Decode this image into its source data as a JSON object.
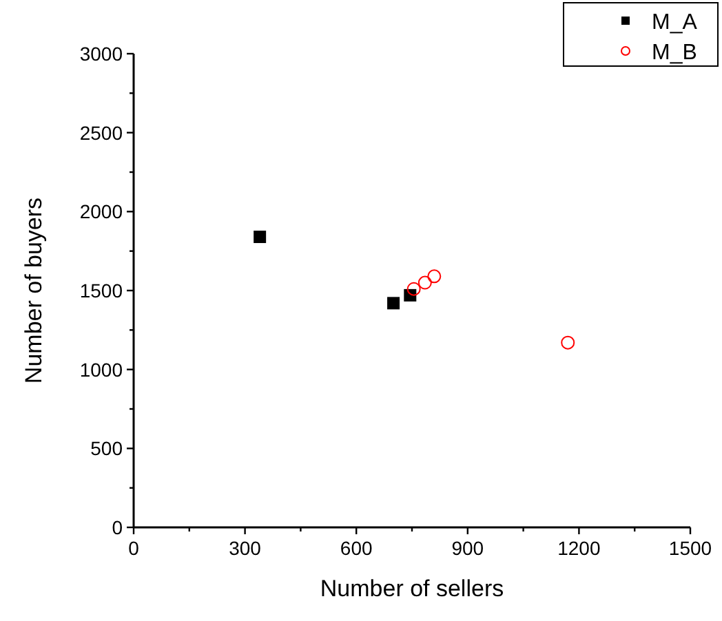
{
  "chart_data": {
    "type": "scatter",
    "xlabel": "Number of sellers",
    "ylabel": "Number of buyers",
    "xlim": [
      0,
      1500
    ],
    "ylim": [
      0,
      3000
    ],
    "xticks": [
      0,
      {
        "value": 150,
        "label": null
      },
      300,
      {
        "value": 450,
        "label": null
      },
      600,
      {
        "value": 750,
        "label": null
      },
      900,
      {
        "value": 1050,
        "label": null
      },
      1200,
      {
        "value": 1350,
        "label": null
      },
      1500
    ],
    "yticks": [
      0,
      {
        "value": 250,
        "label": null
      },
      500,
      {
        "value": 750,
        "label": null
      },
      1000,
      {
        "value": 1250,
        "label": null
      },
      1500,
      {
        "value": 1750,
        "label": null
      },
      2000,
      {
        "value": 2250,
        "label": null
      },
      2500,
      {
        "value": 2750,
        "label": null
      },
      3000
    ],
    "legend": "top right",
    "grid": false,
    "series": [
      {
        "name": "M_A",
        "color": "#000000",
        "marker": "square",
        "x": [
          340,
          700,
          745
        ],
        "values": [
          1840,
          1420,
          1470
        ]
      },
      {
        "name": "M_B",
        "color": "#ff0000",
        "marker": "circle",
        "x": [
          755,
          785,
          810,
          1170
        ],
        "values": [
          1510,
          1550,
          1590,
          1170
        ]
      }
    ]
  }
}
